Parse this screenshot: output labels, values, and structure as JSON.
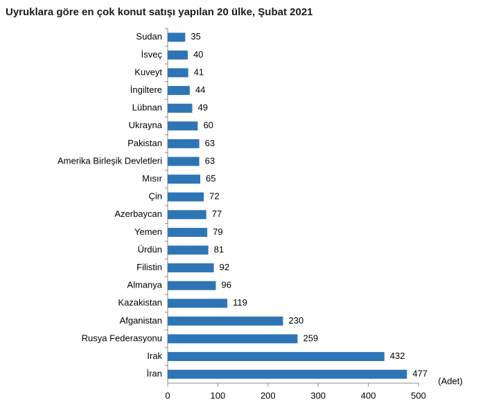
{
  "chart_data": {
    "type": "bar",
    "orientation": "horizontal",
    "title": "Uyruklara göre en çok konut satışı yapılan 20 ülke, Şubat 2021",
    "categories": [
      "Sudan",
      "İsveç",
      "Kuveyt",
      "İngiltere",
      "Lübnan",
      "Ukrayna",
      "Pakistan",
      "Amerika Birleşik Devletleri",
      "Mısır",
      "Çin",
      "Azerbaycan",
      "Yemen",
      "Ürdün",
      "Filistin",
      "Almanya",
      "Kazakistan",
      "Afganistan",
      "Rusya Federasyonu",
      "Irak",
      "İran"
    ],
    "values": [
      35,
      40,
      41,
      44,
      49,
      60,
      63,
      63,
      65,
      72,
      77,
      79,
      81,
      92,
      96,
      119,
      230,
      259,
      432,
      477
    ],
    "color": "#2e75b6",
    "x_label": "(Adet)",
    "xlim": [
      0,
      500
    ],
    "xticks": [
      0,
      100,
      200,
      300,
      400,
      500
    ],
    "grid": false
  }
}
